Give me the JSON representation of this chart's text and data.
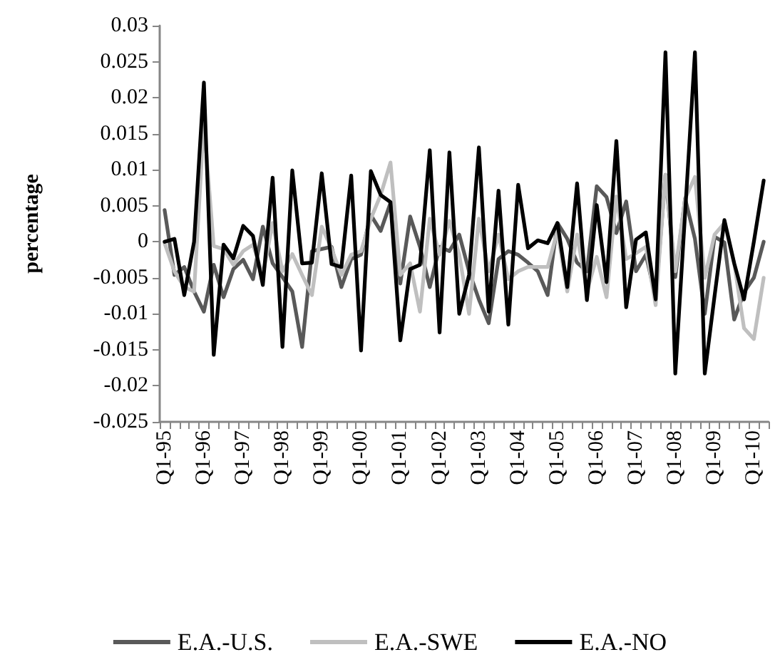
{
  "chart_data": {
    "type": "line",
    "ylabel": "percentage",
    "categories": [
      "Q1-95",
      null,
      null,
      null,
      "Q1-96",
      null,
      null,
      null,
      "Q1-97",
      null,
      null,
      null,
      "Q1-98",
      null,
      null,
      null,
      "Q1-99",
      null,
      null,
      null,
      "Q1-00",
      null,
      null,
      null,
      "Q1-01",
      null,
      null,
      null,
      "Q1-02",
      null,
      null,
      null,
      "Q1-03",
      null,
      null,
      null,
      "Q1-04",
      null,
      null,
      null,
      "Q1-05",
      null,
      null,
      null,
      "Q1-06",
      null,
      null,
      null,
      "Q1-07",
      null,
      null,
      null,
      "Q1-08",
      null,
      null,
      null,
      "Q1-09",
      null,
      null,
      null,
      "Q1-10",
      null
    ],
    "series": [
      {
        "name": "E.A.-U.S.",
        "color": "#595959",
        "values": [
          0.0044,
          -0.0046,
          -0.0035,
          -0.0069,
          -0.0097,
          -0.0032,
          -0.0077,
          -0.0038,
          -0.0025,
          -0.0052,
          0.0021,
          -0.003,
          -0.0049,
          -0.0069,
          -0.0146,
          -0.0013,
          -0.001,
          -0.0007,
          -0.0063,
          -0.0024,
          -0.0018,
          0.0037,
          0.0015,
          0.0054,
          -0.0058,
          0.0035,
          -0.0007,
          -0.0063,
          -0.0007,
          -0.0013,
          0.001,
          -0.0041,
          -0.008,
          -0.0113,
          -0.0024,
          -0.0013,
          -0.0018,
          -0.0029,
          -0.0041,
          -0.0074,
          0.0026,
          0.0004,
          -0.0029,
          -0.0041,
          0.0077,
          0.0062,
          0.0012,
          0.0056,
          -0.0041,
          -0.0018,
          -0.0077,
          0.0093,
          -0.0049,
          0.006,
          0.0004,
          -0.01,
          0.0007,
          -0.0001,
          -0.0108,
          -0.007,
          -0.005,
          0
        ]
      },
      {
        "name": "E.A.-SWE",
        "color": "#bfbfbf",
        "values": [
          -0.0002,
          -0.0041,
          -0.0063,
          -0.0069,
          0.0166,
          -0.0006,
          -0.001,
          -0.0032,
          -0.0013,
          -0.0004,
          -0.0046,
          0.0026,
          -0.0041,
          -0.0017,
          -0.0046,
          -0.0074,
          0.0021,
          -0.001,
          -0.0046,
          -0.0018,
          -0.0013,
          0.0032,
          0.0065,
          0.011,
          -0.0046,
          -0.003,
          -0.0097,
          0.0032,
          -0.0018,
          0.0029,
          -0.0018,
          -0.01,
          0.0032,
          -0.0041,
          0.001,
          -0.0052,
          -0.0041,
          -0.0035,
          -0.0035,
          -0.0035,
          0.0015,
          -0.0069,
          0.001,
          -0.0069,
          -0.0021,
          -0.0077,
          0.0063,
          -0.0024,
          -0.0016,
          -0.0007,
          -0.0088,
          0.0093,
          -0.0041,
          0.006,
          0.009,
          -0.005,
          0.001,
          0.0026,
          -0.003,
          -0.012,
          -0.0135,
          -0.005
        ]
      },
      {
        "name": "E.A.-NO",
        "color": "#000000",
        "values": [
          0,
          0.0004,
          -0.0074,
          0,
          0.0221,
          -0.0157,
          -0.0004,
          -0.0023,
          0.0022,
          0.0008,
          -0.006,
          0.0089,
          -0.0146,
          0.0099,
          -0.003,
          -0.0029,
          0.0095,
          -0.0031,
          -0.0035,
          0.0092,
          -0.0151,
          0.0098,
          0.0065,
          0.0055,
          -0.0137,
          -0.0038,
          -0.0032,
          0.0127,
          -0.0126,
          0.0124,
          -0.01,
          -0.0046,
          0.0131,
          -0.0097,
          0.0071,
          -0.0115,
          0.0079,
          -0.0009,
          0.0002,
          -0.0002,
          0.0026,
          -0.0063,
          0.0081,
          -0.0081,
          0.0051,
          -0.0056,
          0.014,
          -0.0091,
          0.0003,
          0.0013,
          -0.008,
          0.0263,
          -0.0183,
          0.004,
          0.0263,
          -0.0183,
          -0.0075,
          0.003,
          -0.003,
          -0.008,
          0,
          0.0085
        ]
      }
    ],
    "ylim": [
      -0.025,
      0.03
    ],
    "yticks": [
      -0.025,
      -0.02,
      -0.015,
      -0.01,
      -0.005,
      0,
      0.005,
      0.01,
      0.015,
      0.02,
      0.025,
      0.03
    ],
    "grid": false,
    "legend": "bottom",
    "marker": "none",
    "line_style": "solid"
  }
}
